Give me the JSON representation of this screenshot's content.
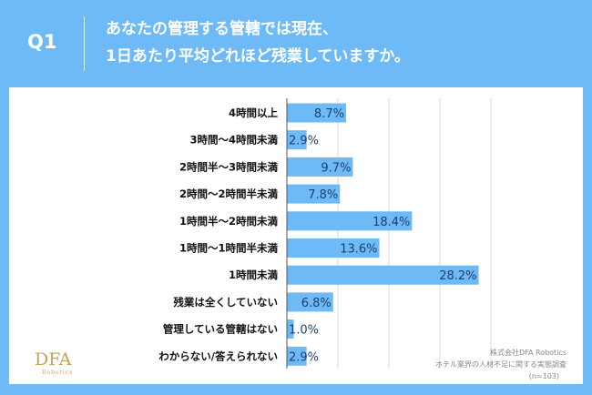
{
  "header": {
    "q": "Q1",
    "title_line1": "あなたの管理する管轄では現在、",
    "title_line2": "1日あたり平均どれほど残業していますか。"
  },
  "colors": {
    "bar": "#6dbaf6",
    "border": "#6dbaf6",
    "value": "#1d3f6e"
  },
  "chart_data": {
    "type": "bar",
    "orientation": "horizontal",
    "categories": [
      "4時間以上",
      "3時間〜4時間未満",
      "2時間半〜3時間未満",
      "2時間〜2時間半未満",
      "1時間半〜2時間未満",
      "1時間〜1時間半未満",
      "1時間未満",
      "残業は全くしていない",
      "管理している管轄はない",
      "わからない/答えられない"
    ],
    "values": [
      8.7,
      2.9,
      9.7,
      7.8,
      18.4,
      13.6,
      28.2,
      6.8,
      1.0,
      2.9
    ],
    "labels": [
      "8.7%",
      "2.9%",
      "9.7%",
      "7.8%",
      "18.4%",
      "13.6%",
      "28.2%",
      "6.8%",
      "1.0%",
      "2.9%"
    ],
    "xlim": [
      0,
      30
    ],
    "gridlines": [
      7.5,
      15,
      22.5,
      30
    ],
    "grid": true
  },
  "logo": {
    "name": "DFA",
    "sub": "Robotics"
  },
  "source": {
    "line1": "株式会社DFA Robotics",
    "line2": "ホテル業界の人材不足に関する実態調査",
    "line3": "(n=103)"
  }
}
